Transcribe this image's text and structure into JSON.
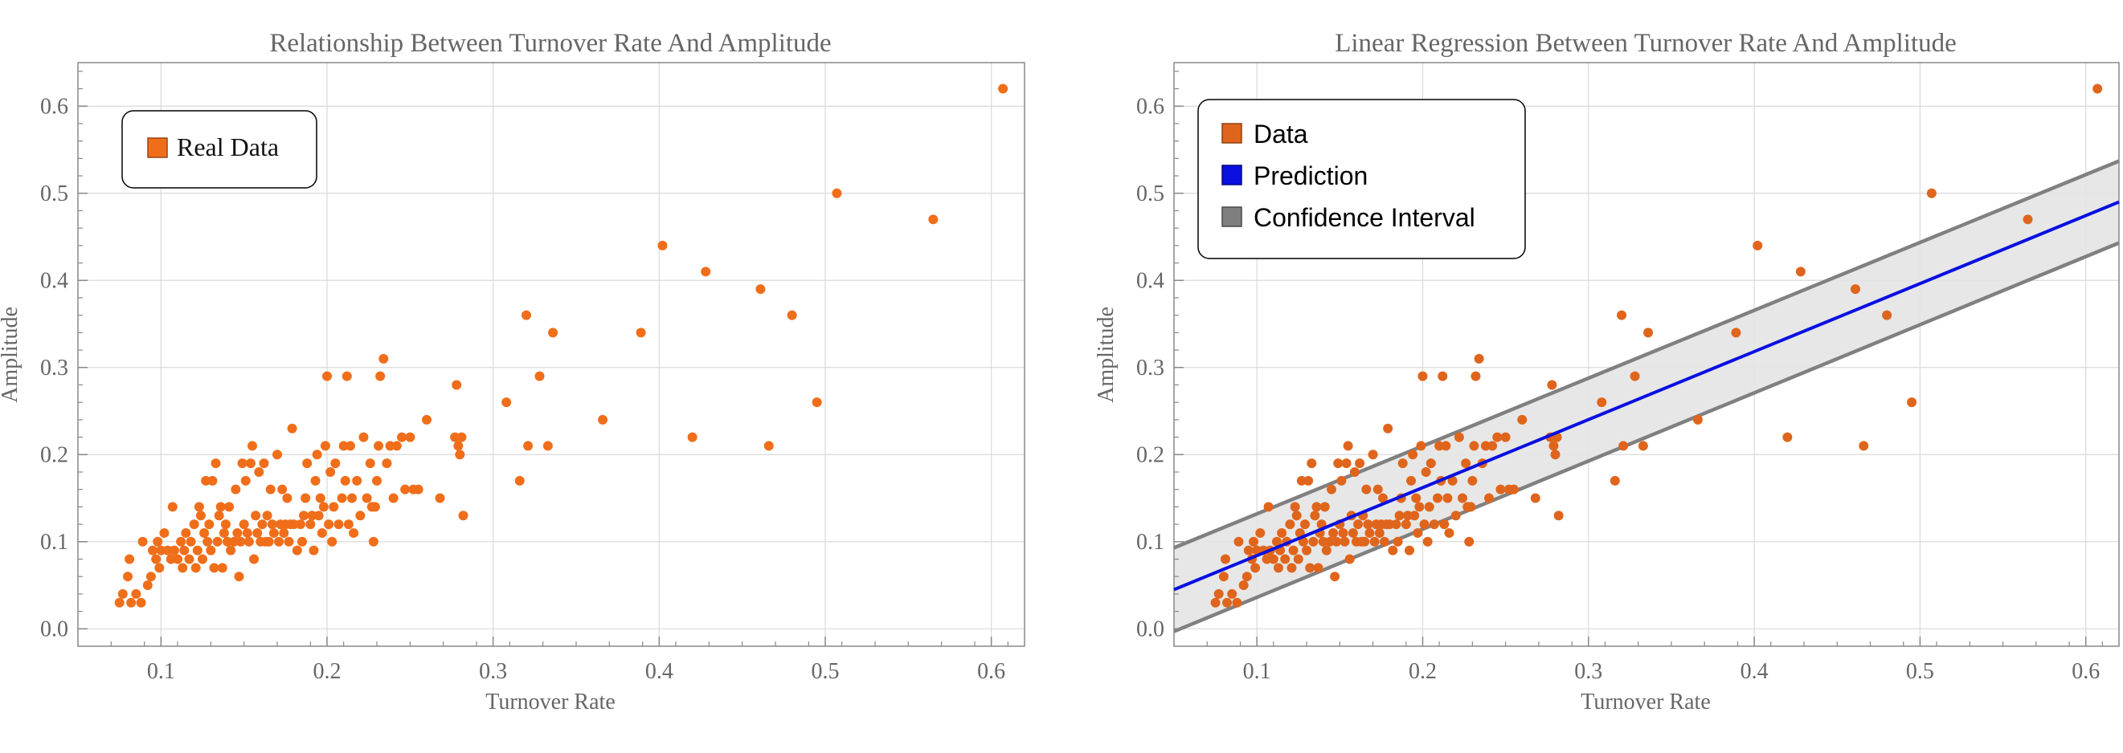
{
  "chart_data": [
    {
      "type": "scatter",
      "title": "Relationship Between Turnover Rate And Amplitude",
      "xlabel": "Turnover Rate",
      "ylabel": "Amplitude",
      "xlim": [
        0.05,
        0.62
      ],
      "ylim": [
        -0.02,
        0.65
      ],
      "xticks": [
        "0.1",
        "0.2",
        "0.3",
        "0.4",
        "0.5",
        "0.6"
      ],
      "yticks": [
        "0.0",
        "0.1",
        "0.2",
        "0.3",
        "0.4",
        "0.5",
        "0.6"
      ],
      "grid": true,
      "legend": {
        "placement": "top-left",
        "entries": [
          "Real Data"
        ]
      },
      "colors": {
        "data": "#F06E1A",
        "frame": "#888888",
        "grid": "#D9D9D9",
        "text": "#666666"
      },
      "series": [
        {
          "name": "Real Data",
          "points": [
            [
              0.075,
              0.03
            ],
            [
              0.077,
              0.04
            ],
            [
              0.08,
              0.06
            ],
            [
              0.081,
              0.08
            ],
            [
              0.082,
              0.03
            ],
            [
              0.085,
              0.04
            ],
            [
              0.088,
              0.03
            ],
            [
              0.089,
              0.1
            ],
            [
              0.092,
              0.05
            ],
            [
              0.094,
              0.06
            ],
            [
              0.095,
              0.09
            ],
            [
              0.097,
              0.08
            ],
            [
              0.098,
              0.1
            ],
            [
              0.099,
              0.07
            ],
            [
              0.1,
              0.09
            ],
            [
              0.102,
              0.11
            ],
            [
              0.104,
              0.09
            ],
            [
              0.106,
              0.08
            ],
            [
              0.107,
              0.14
            ],
            [
              0.108,
              0.09
            ],
            [
              0.11,
              0.08
            ],
            [
              0.112,
              0.1
            ],
            [
              0.113,
              0.07
            ],
            [
              0.114,
              0.09
            ],
            [
              0.115,
              0.11
            ],
            [
              0.117,
              0.08
            ],
            [
              0.118,
              0.1
            ],
            [
              0.12,
              0.12
            ],
            [
              0.121,
              0.07
            ],
            [
              0.122,
              0.09
            ],
            [
              0.123,
              0.14
            ],
            [
              0.124,
              0.13
            ],
            [
              0.125,
              0.08
            ],
            [
              0.126,
              0.11
            ],
            [
              0.127,
              0.17
            ],
            [
              0.128,
              0.1
            ],
            [
              0.129,
              0.12
            ],
            [
              0.13,
              0.09
            ],
            [
              0.131,
              0.17
            ],
            [
              0.132,
              0.07
            ],
            [
              0.133,
              0.19
            ],
            [
              0.134,
              0.1
            ],
            [
              0.135,
              0.13
            ],
            [
              0.136,
              0.14
            ],
            [
              0.137,
              0.07
            ],
            [
              0.138,
              0.11
            ],
            [
              0.139,
              0.12
            ],
            [
              0.14,
              0.1
            ],
            [
              0.141,
              0.14
            ],
            [
              0.142,
              0.09
            ],
            [
              0.144,
              0.1
            ],
            [
              0.145,
              0.16
            ],
            [
              0.146,
              0.11
            ],
            [
              0.147,
              0.06
            ],
            [
              0.148,
              0.1
            ],
            [
              0.149,
              0.19
            ],
            [
              0.15,
              0.12
            ],
            [
              0.151,
              0.17
            ],
            [
              0.152,
              0.11
            ],
            [
              0.153,
              0.1
            ],
            [
              0.154,
              0.19
            ],
            [
              0.155,
              0.21
            ],
            [
              0.156,
              0.08
            ],
            [
              0.157,
              0.13
            ],
            [
              0.158,
              0.11
            ],
            [
              0.159,
              0.18
            ],
            [
              0.16,
              0.1
            ],
            [
              0.161,
              0.12
            ],
            [
              0.162,
              0.19
            ],
            [
              0.163,
              0.1
            ],
            [
              0.164,
              0.13
            ],
            [
              0.165,
              0.1
            ],
            [
              0.166,
              0.16
            ],
            [
              0.167,
              0.12
            ],
            [
              0.168,
              0.11
            ],
            [
              0.17,
              0.2
            ],
            [
              0.171,
              0.1
            ],
            [
              0.172,
              0.12
            ],
            [
              0.173,
              0.16
            ],
            [
              0.174,
              0.11
            ],
            [
              0.175,
              0.12
            ],
            [
              0.176,
              0.15
            ],
            [
              0.177,
              0.1
            ],
            [
              0.178,
              0.12
            ],
            [
              0.179,
              0.23
            ],
            [
              0.18,
              0.12
            ],
            [
              0.182,
              0.09
            ],
            [
              0.184,
              0.12
            ],
            [
              0.185,
              0.1
            ],
            [
              0.186,
              0.13
            ],
            [
              0.187,
              0.15
            ],
            [
              0.188,
              0.19
            ],
            [
              0.19,
              0.12
            ],
            [
              0.191,
              0.13
            ],
            [
              0.192,
              0.09
            ],
            [
              0.193,
              0.17
            ],
            [
              0.194,
              0.2
            ],
            [
              0.195,
              0.13
            ],
            [
              0.196,
              0.15
            ],
            [
              0.197,
              0.11
            ],
            [
              0.198,
              0.14
            ],
            [
              0.199,
              0.21
            ],
            [
              0.2,
              0.29
            ],
            [
              0.201,
              0.12
            ],
            [
              0.202,
              0.18
            ],
            [
              0.203,
              0.1
            ],
            [
              0.204,
              0.14
            ],
            [
              0.205,
              0.19
            ],
            [
              0.207,
              0.12
            ],
            [
              0.209,
              0.15
            ],
            [
              0.21,
              0.21
            ],
            [
              0.211,
              0.17
            ],
            [
              0.212,
              0.29
            ],
            [
              0.213,
              0.12
            ],
            [
              0.214,
              0.21
            ],
            [
              0.215,
              0.15
            ],
            [
              0.216,
              0.11
            ],
            [
              0.218,
              0.17
            ],
            [
              0.22,
              0.13
            ],
            [
              0.222,
              0.22
            ],
            [
              0.224,
              0.15
            ],
            [
              0.226,
              0.19
            ],
            [
              0.227,
              0.14
            ],
            [
              0.228,
              0.1
            ],
            [
              0.229,
              0.14
            ],
            [
              0.23,
              0.17
            ],
            [
              0.231,
              0.21
            ],
            [
              0.232,
              0.29
            ],
            [
              0.234,
              0.31
            ],
            [
              0.236,
              0.19
            ],
            [
              0.238,
              0.21
            ],
            [
              0.24,
              0.15
            ],
            [
              0.242,
              0.21
            ],
            [
              0.245,
              0.22
            ],
            [
              0.247,
              0.16
            ],
            [
              0.25,
              0.22
            ],
            [
              0.252,
              0.16
            ],
            [
              0.255,
              0.16
            ],
            [
              0.26,
              0.24
            ],
            [
              0.268,
              0.15
            ],
            [
              0.277,
              0.22
            ],
            [
              0.278,
              0.28
            ],
            [
              0.279,
              0.21
            ],
            [
              0.28,
              0.2
            ],
            [
              0.281,
              0.22
            ],
            [
              0.282,
              0.13
            ],
            [
              0.308,
              0.26
            ],
            [
              0.316,
              0.17
            ],
            [
              0.32,
              0.36
            ],
            [
              0.321,
              0.21
            ],
            [
              0.328,
              0.29
            ],
            [
              0.333,
              0.21
            ],
            [
              0.336,
              0.34
            ],
            [
              0.366,
              0.24
            ],
            [
              0.389,
              0.34
            ],
            [
              0.402,
              0.44
            ],
            [
              0.42,
              0.22
            ],
            [
              0.428,
              0.41
            ],
            [
              0.461,
              0.39
            ],
            [
              0.466,
              0.21
            ],
            [
              0.48,
              0.36
            ],
            [
              0.495,
              0.26
            ],
            [
              0.507,
              0.5
            ],
            [
              0.565,
              0.47
            ],
            [
              0.607,
              0.62
            ]
          ]
        }
      ]
    },
    {
      "type": "scatter",
      "title": "Linear Regression Between Turnover Rate And Amplitude",
      "xlabel": "Turnover Rate",
      "ylabel": "Amplitude",
      "xlim": [
        0.05,
        0.62
      ],
      "ylim": [
        -0.02,
        0.65
      ],
      "xticks": [
        "0.1",
        "0.2",
        "0.3",
        "0.4",
        "0.5",
        "0.6"
      ],
      "yticks": [
        "0.0",
        "0.1",
        "0.2",
        "0.3",
        "0.4",
        "0.5",
        "0.6"
      ],
      "grid": true,
      "legend": {
        "placement": "top-left",
        "entries": [
          "Data",
          "Prediction",
          "Confidence Interval"
        ]
      },
      "colors": {
        "data": "#E0651C",
        "prediction": "#0A10E0",
        "interval_line": "#808080",
        "interval_fill": "#E4E4E4",
        "legend_interval": "#7F7F7F",
        "frame": "#888888",
        "grid": "#D9D9D9",
        "text": "#666666"
      },
      "series": [
        {
          "name": "Data",
          "points_from": 0
        },
        {
          "name": "Prediction",
          "line": [
            [
              0.05,
              0.045
            ],
            [
              0.62,
              0.49
            ]
          ]
        },
        {
          "name": "Confidence Interval",
          "upper": [
            [
              0.05,
              0.093
            ],
            [
              0.62,
              0.537
            ]
          ],
          "lower": [
            [
              0.05,
              -0.003
            ],
            [
              0.62,
              0.443
            ]
          ]
        }
      ]
    }
  ]
}
